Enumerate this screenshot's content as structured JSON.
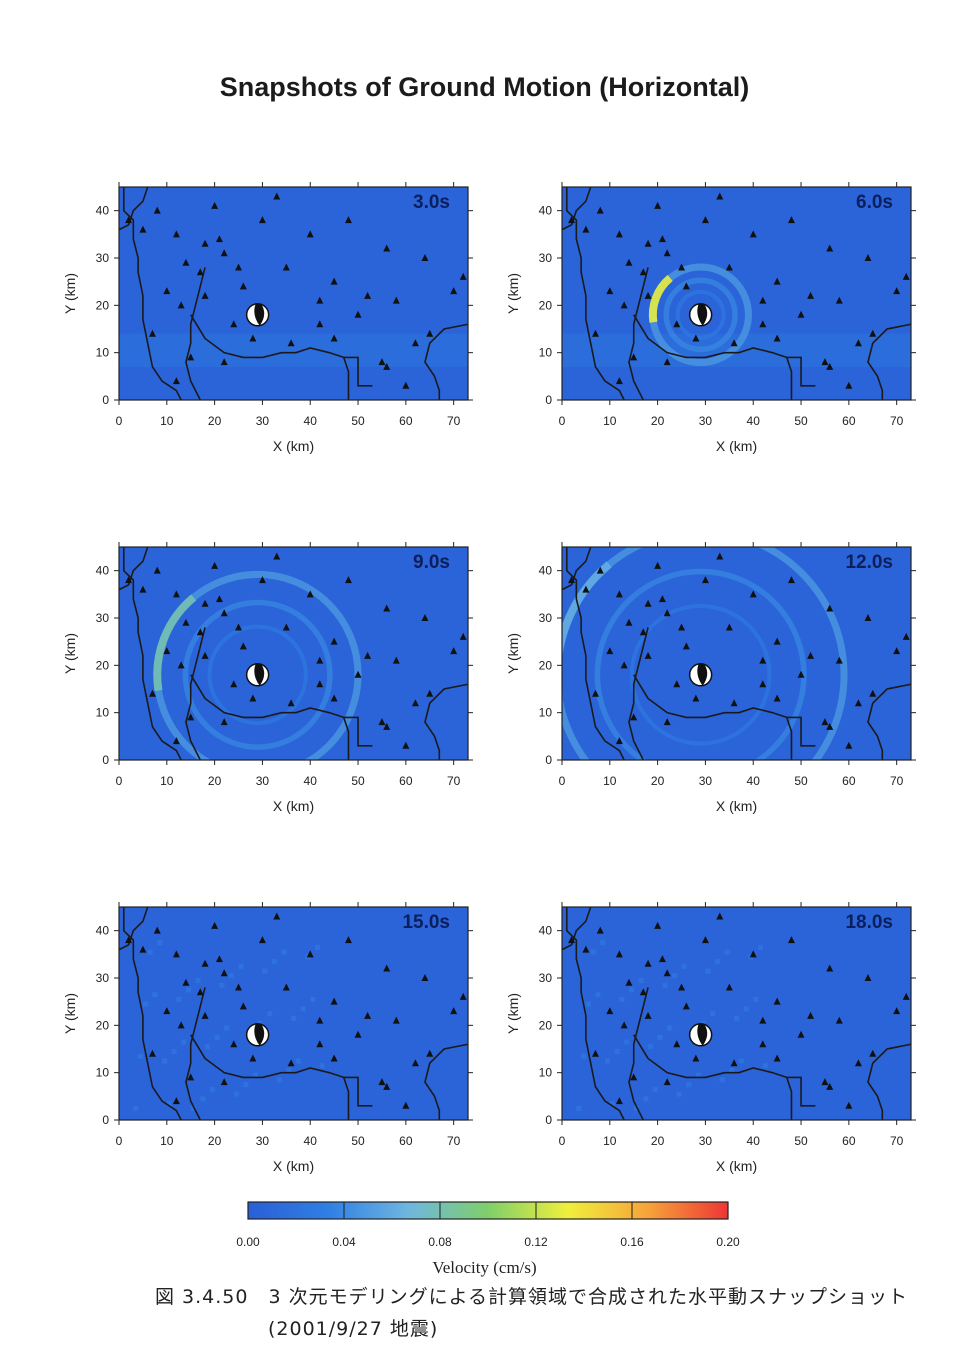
{
  "title": "Snapshots of Ground Motion (Horizontal)",
  "axes": {
    "xlabel": "X (km)",
    "ylabel": "Y (km)",
    "xticks": [
      "0",
      "10",
      "20",
      "30",
      "40",
      "50",
      "60",
      "70"
    ],
    "yticks": [
      "0",
      "10",
      "20",
      "30",
      "40"
    ]
  },
  "chart_data": [
    {
      "type": "heatmap",
      "time_label": "3.0s",
      "xlim": [
        0,
        73
      ],
      "ylim": [
        0,
        45
      ],
      "wavefront_radius_km": 0,
      "peak_velocity_cms": 0.04
    },
    {
      "type": "heatmap",
      "time_label": "6.0s",
      "xlim": [
        0,
        73
      ],
      "ylim": [
        0,
        45
      ],
      "wavefront_radius_km": 10,
      "peak_velocity_cms": 0.13
    },
    {
      "type": "heatmap",
      "time_label": "9.0s",
      "xlim": [
        0,
        73
      ],
      "ylim": [
        0,
        45
      ],
      "wavefront_radius_km": 21,
      "peak_velocity_cms": 0.08
    },
    {
      "type": "heatmap",
      "time_label": "12.0s",
      "xlim": [
        0,
        73
      ],
      "ylim": [
        0,
        45
      ],
      "wavefront_radius_km": 30,
      "peak_velocity_cms": 0.06
    },
    {
      "type": "heatmap",
      "time_label": "15.0s",
      "xlim": [
        0,
        73
      ],
      "ylim": [
        0,
        45
      ],
      "wavefront_radius_km": 0,
      "peak_velocity_cms": 0.05
    },
    {
      "type": "heatmap",
      "time_label": "18.0s",
      "xlim": [
        0,
        73
      ],
      "ylim": [
        0,
        45
      ],
      "wavefront_radius_km": 0,
      "peak_velocity_cms": 0.05
    }
  ],
  "colorbar": {
    "label": "Velocity (cm/s)",
    "ticks": [
      "0.00",
      "0.04",
      "0.08",
      "0.12",
      "0.16",
      "0.20"
    ],
    "colors": [
      "#2a5fd6",
      "#2f7fe4",
      "#6fb6e0",
      "#7fcf6a",
      "#f0ef3c",
      "#f6a33a",
      "#ee3535"
    ]
  },
  "epicenter": {
    "x_km": 29,
    "y_km": 18
  },
  "stations": [
    [
      2,
      38
    ],
    [
      5,
      36
    ],
    [
      8,
      40
    ],
    [
      12,
      35
    ],
    [
      14,
      29
    ],
    [
      17,
      27
    ],
    [
      20,
      41
    ],
    [
      21,
      34
    ],
    [
      22,
      31
    ],
    [
      25,
      28
    ],
    [
      26,
      24
    ],
    [
      33,
      43
    ],
    [
      35,
      28
    ],
    [
      42,
      21
    ],
    [
      48,
      38
    ],
    [
      45,
      25
    ],
    [
      52,
      22
    ],
    [
      56,
      32
    ],
    [
      58,
      21
    ],
    [
      64,
      30
    ],
    [
      70,
      23
    ],
    [
      72,
      26
    ],
    [
      10,
      23
    ],
    [
      13,
      20
    ],
    [
      18,
      22
    ],
    [
      24,
      16
    ],
    [
      28,
      13
    ],
    [
      36,
      12
    ],
    [
      42,
      16
    ],
    [
      45,
      13
    ],
    [
      50,
      18
    ],
    [
      55,
      8
    ],
    [
      56,
      7
    ],
    [
      62,
      12
    ],
    [
      65,
      14
    ],
    [
      15,
      9
    ],
    [
      22,
      8
    ],
    [
      12,
      4
    ],
    [
      60,
      3
    ],
    [
      7,
      14
    ],
    [
      18,
      33
    ],
    [
      30,
      38
    ],
    [
      40,
      35
    ]
  ],
  "caption": {
    "line1": "図 3.4.50　3 次元モデリングによる計算領域で合成された水平動スナップショット",
    "line2": "(2001/9/27 地震)"
  }
}
